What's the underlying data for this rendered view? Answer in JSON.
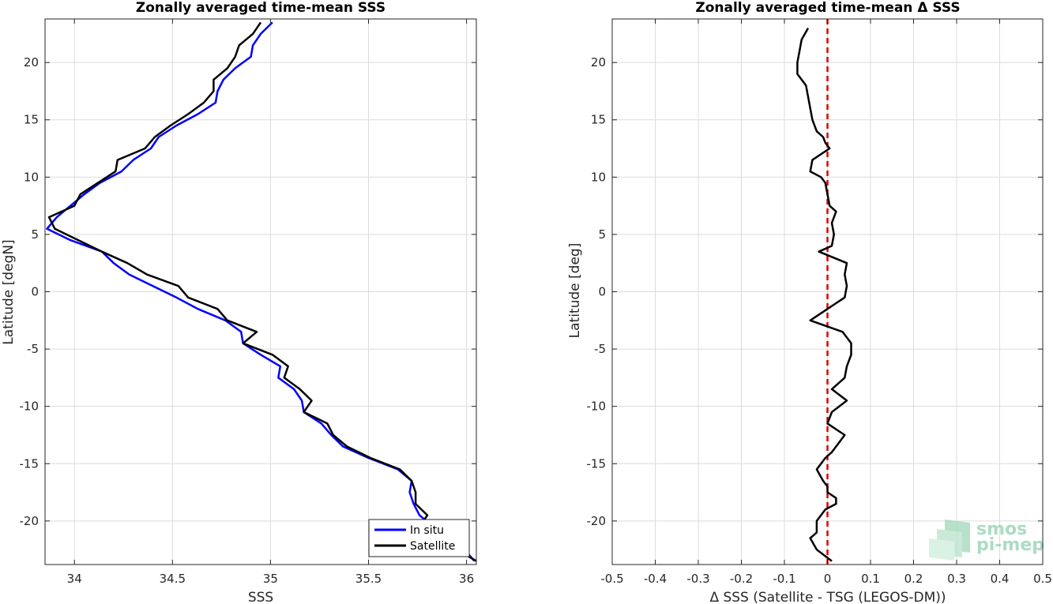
{
  "chart_data": [
    {
      "type": "line",
      "title": "Zonally averaged time-mean SSS",
      "xlabel": "SSS",
      "ylabel": "Latitude [degN]",
      "xlim": [
        33.85,
        36.05
      ],
      "ylim": [
        -23.8,
        23.8
      ],
      "xticks": [
        34,
        34.5,
        35,
        35.5,
        36
      ],
      "xtick_labels": [
        "34",
        "34.5",
        "35",
        "35.5",
        "36"
      ],
      "yticks": [
        -20,
        -15,
        -10,
        -5,
        0,
        5,
        10,
        15,
        20
      ],
      "ytick_labels": [
        "-20",
        "-15",
        "-10",
        "-5",
        "0",
        "5",
        "10",
        "15",
        "20"
      ],
      "grid": true,
      "legend_location": "bottom-right",
      "series": [
        {
          "name": "In situ",
          "color": "#0000ff",
          "points": [
            [
              35.01,
              23.5
            ],
            [
              34.95,
              22.5
            ],
            [
              34.91,
              21.5
            ],
            [
              34.9,
              20.5
            ],
            [
              34.82,
              19.5
            ],
            [
              34.76,
              18.5
            ],
            [
              34.73,
              17.5
            ],
            [
              34.72,
              16.5
            ],
            [
              34.63,
              15.5
            ],
            [
              34.52,
              14.5
            ],
            [
              34.43,
              13.5
            ],
            [
              34.39,
              12.5
            ],
            [
              34.3,
              11.5
            ],
            [
              34.24,
              10.5
            ],
            [
              34.13,
              9.5
            ],
            [
              34.05,
              8.5
            ],
            [
              33.98,
              7.5
            ],
            [
              33.91,
              6.5
            ],
            [
              33.86,
              5.5
            ],
            [
              33.98,
              4.5
            ],
            [
              34.14,
              3.5
            ],
            [
              34.2,
              2.5
            ],
            [
              34.28,
              1.5
            ],
            [
              34.4,
              0.5
            ],
            [
              34.52,
              -0.5
            ],
            [
              34.63,
              -1.5
            ],
            [
              34.77,
              -2.5
            ],
            [
              34.85,
              -3.5
            ],
            [
              34.86,
              -4.5
            ],
            [
              34.95,
              -5.5
            ],
            [
              35.05,
              -6.5
            ],
            [
              35.04,
              -7.5
            ],
            [
              35.12,
              -8.5
            ],
            [
              35.16,
              -9.5
            ],
            [
              35.17,
              -10.5
            ],
            [
              35.26,
              -11.5
            ],
            [
              35.31,
              -12.5
            ],
            [
              35.37,
              -13.5
            ],
            [
              35.5,
              -14.5
            ],
            [
              35.65,
              -15.5
            ],
            [
              35.72,
              -16.5
            ],
            [
              35.71,
              -17.5
            ],
            [
              35.73,
              -18.5
            ],
            [
              35.76,
              -19.5
            ],
            [
              35.83,
              -20.5
            ],
            [
              35.9,
              -21.5
            ],
            [
              35.99,
              -22.5
            ],
            [
              36.04,
              -23.5
            ]
          ]
        },
        {
          "name": "Satellite",
          "color": "#000000",
          "points": [
            [
              34.95,
              23.5
            ],
            [
              34.91,
              22.5
            ],
            [
              34.84,
              21.5
            ],
            [
              34.82,
              20.5
            ],
            [
              34.78,
              19.5
            ],
            [
              34.71,
              18.5
            ],
            [
              34.71,
              17.5
            ],
            [
              34.66,
              16.5
            ],
            [
              34.58,
              15.5
            ],
            [
              34.49,
              14.5
            ],
            [
              34.41,
              13.5
            ],
            [
              34.36,
              12.5
            ],
            [
              34.22,
              11.5
            ],
            [
              34.21,
              10.5
            ],
            [
              34.12,
              9.5
            ],
            [
              34.03,
              8.5
            ],
            [
              34.0,
              7.5
            ],
            [
              33.87,
              6.5
            ],
            [
              33.9,
              5.5
            ],
            [
              34.02,
              4.5
            ],
            [
              34.14,
              3.5
            ],
            [
              34.27,
              2.5
            ],
            [
              34.37,
              1.5
            ],
            [
              34.53,
              0.5
            ],
            [
              34.58,
              -0.5
            ],
            [
              34.73,
              -1.5
            ],
            [
              34.78,
              -2.5
            ],
            [
              34.93,
              -3.5
            ],
            [
              34.86,
              -4.5
            ],
            [
              35.01,
              -5.5
            ],
            [
              35.09,
              -6.5
            ],
            [
              35.07,
              -7.5
            ],
            [
              35.15,
              -8.5
            ],
            [
              35.21,
              -9.5
            ],
            [
              35.17,
              -10.5
            ],
            [
              35.29,
              -11.5
            ],
            [
              35.32,
              -12.5
            ],
            [
              35.39,
              -13.5
            ],
            [
              35.51,
              -14.5
            ],
            [
              35.66,
              -15.5
            ],
            [
              35.72,
              -16.5
            ],
            [
              35.74,
              -17.5
            ],
            [
              35.74,
              -18.5
            ],
            [
              35.8,
              -19.5
            ],
            [
              35.76,
              -20.5
            ],
            [
              35.88,
              -21.5
            ],
            [
              35.95,
              -22.5
            ],
            [
              36.05,
              -23.5
            ]
          ]
        }
      ]
    },
    {
      "type": "line",
      "title": "Zonally averaged time-mean Δ SSS",
      "xlabel": "Δ SSS (Satellite - TSG (LEGOS-DM))",
      "ylabel": "Latitude [deg]",
      "xlim": [
        -0.5,
        0.5
      ],
      "ylim": [
        -23.8,
        23.8
      ],
      "xticks": [
        -0.5,
        -0.4,
        -0.3,
        -0.2,
        -0.1,
        0,
        0.1,
        0.2,
        0.3,
        0.4,
        0.5
      ],
      "xtick_labels": [
        "-0.5",
        "-0.4",
        "-0.3",
        "-0.2",
        "-0.1",
        "0",
        "0.1",
        "0.2",
        "0.3",
        "0.4",
        "0.5"
      ],
      "yticks": [
        -20,
        -15,
        -10,
        -5,
        0,
        5,
        10,
        15,
        20
      ],
      "ytick_labels": [
        "-20",
        "-15",
        "-10",
        "-5",
        "0",
        "5",
        "10",
        "15",
        "20"
      ],
      "grid": true,
      "zero_line": {
        "x": 0,
        "color": "#e00000",
        "style": "dashed"
      },
      "series": [
        {
          "color": "#000000",
          "points": [
            [
              -0.045,
              23.0
            ],
            [
              -0.06,
              22.0
            ],
            [
              -0.065,
              21.0
            ],
            [
              -0.07,
              20.0
            ],
            [
              -0.07,
              19.0
            ],
            [
              -0.05,
              18.0
            ],
            [
              -0.045,
              17.0
            ],
            [
              -0.04,
              16.0
            ],
            [
              -0.035,
              15.0
            ],
            [
              -0.025,
              14.0
            ],
            [
              -0.01,
              13.5
            ],
            [
              -0.005,
              13.0
            ],
            [
              0.005,
              12.5
            ],
            [
              -0.035,
              11.5
            ],
            [
              -0.04,
              10.5
            ],
            [
              -0.015,
              10.0
            ],
            [
              -0.005,
              9.5
            ],
            [
              0.0,
              8.5
            ],
            [
              0.005,
              7.5
            ],
            [
              0.02,
              7.0
            ],
            [
              0.01,
              6.0
            ],
            [
              0.015,
              5.0
            ],
            [
              0.01,
              4.0
            ],
            [
              -0.02,
              3.5
            ],
            [
              0.045,
              2.5
            ],
            [
              0.04,
              1.5
            ],
            [
              0.045,
              0.5
            ],
            [
              0.04,
              -0.5
            ],
            [
              0.02,
              -1.0
            ],
            [
              0.0,
              -1.5
            ],
            [
              -0.04,
              -2.5
            ],
            [
              0.035,
              -3.5
            ],
            [
              0.055,
              -4.5
            ],
            [
              0.055,
              -5.5
            ],
            [
              0.045,
              -6.5
            ],
            [
              0.04,
              -7.5
            ],
            [
              0.01,
              -8.5
            ],
            [
              0.045,
              -9.5
            ],
            [
              0.01,
              -10.5
            ],
            [
              0.0,
              -11.5
            ],
            [
              0.04,
              -12.5
            ],
            [
              0.01,
              -14.0
            ],
            [
              -0.005,
              -14.5
            ],
            [
              -0.025,
              -15.5
            ],
            [
              -0.01,
              -16.5
            ],
            [
              0.0,
              -17.0
            ],
            [
              0.0,
              -17.5
            ],
            [
              0.02,
              -18.0
            ],
            [
              0.02,
              -18.5
            ],
            [
              -0.005,
              -19.0
            ],
            [
              -0.025,
              -20.0
            ],
            [
              -0.025,
              -21.0
            ],
            [
              -0.04,
              -21.5
            ],
            [
              -0.025,
              -22.5
            ],
            [
              0.01,
              -23.5
            ]
          ]
        }
      ]
    }
  ],
  "logo": {
    "line1": "smos",
    "line2": "pi-mep"
  }
}
